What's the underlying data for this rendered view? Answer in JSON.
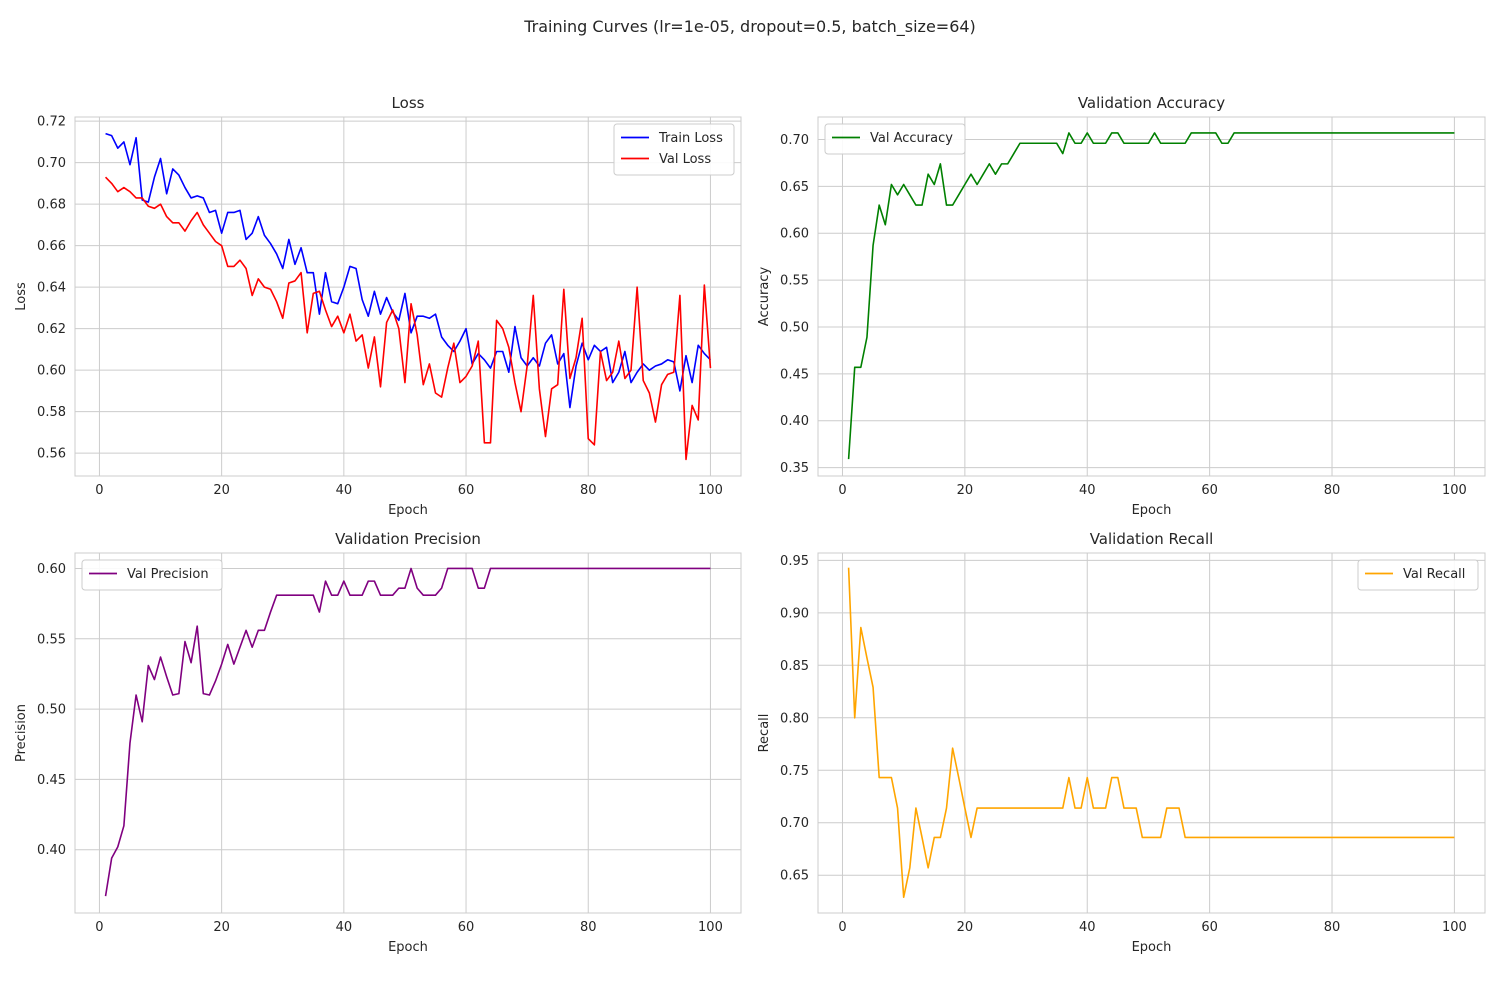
{
  "figure": {
    "title": "Training Curves (lr=1e-05, dropout=0.5, batch_size=64)"
  },
  "chart_data": [
    {
      "type": "line",
      "title": "Loss",
      "xlabel": "Epoch",
      "ylabel": "Loss",
      "xlim": [
        -4,
        105
      ],
      "ylim": [
        0.549,
        0.722
      ],
      "xticks": [
        0,
        20,
        40,
        60,
        80,
        100
      ],
      "yticks": [
        0.56,
        0.58,
        0.6,
        0.62,
        0.64,
        0.66,
        0.68,
        0.7,
        0.72
      ],
      "ytick_format": 2,
      "grid": true,
      "legend": "top-right",
      "x": [
        1,
        2,
        3,
        4,
        5,
        6,
        7,
        8,
        9,
        10,
        11,
        12,
        13,
        14,
        15,
        16,
        17,
        18,
        19,
        20,
        21,
        22,
        23,
        24,
        25,
        26,
        27,
        28,
        29,
        30,
        31,
        32,
        33,
        34,
        35,
        36,
        37,
        38,
        39,
        40,
        41,
        42,
        43,
        44,
        45,
        46,
        47,
        48,
        49,
        50,
        51,
        52,
        53,
        54,
        55,
        56,
        57,
        58,
        59,
        60,
        61,
        62,
        63,
        64,
        65,
        66,
        67,
        68,
        69,
        70,
        71,
        72,
        73,
        74,
        75,
        76,
        77,
        78,
        79,
        80,
        81,
        82,
        83,
        84,
        85,
        86,
        87,
        88,
        89,
        90,
        91,
        92,
        93,
        94,
        95,
        96,
        97,
        98,
        99,
        100
      ],
      "series": [
        {
          "name": "Train Loss",
          "color": "#0000ff",
          "values": [
            0.714,
            0.713,
            0.707,
            0.71,
            0.699,
            0.712,
            0.682,
            0.681,
            0.693,
            0.702,
            0.685,
            0.697,
            0.694,
            0.688,
            0.683,
            0.684,
            0.683,
            0.676,
            0.677,
            0.666,
            0.676,
            0.676,
            0.677,
            0.663,
            0.666,
            0.674,
            0.665,
            0.661,
            0.656,
            0.649,
            0.663,
            0.651,
            0.659,
            0.647,
            0.647,
            0.627,
            0.647,
            0.633,
            0.632,
            0.64,
            0.65,
            0.649,
            0.634,
            0.626,
            0.638,
            0.627,
            0.635,
            0.628,
            0.624,
            0.637,
            0.618,
            0.626,
            0.626,
            0.625,
            0.627,
            0.616,
            0.612,
            0.609,
            0.614,
            0.62,
            0.603,
            0.608,
            0.605,
            0.601,
            0.609,
            0.609,
            0.599,
            0.621,
            0.606,
            0.602,
            0.606,
            0.602,
            0.613,
            0.617,
            0.603,
            0.608,
            0.582,
            0.602,
            0.613,
            0.605,
            0.612,
            0.609,
            0.611,
            0.594,
            0.599,
            0.609,
            0.594,
            0.599,
            0.603,
            0.6,
            0.602,
            0.603,
            0.605,
            0.604,
            0.59,
            0.607,
            0.594,
            0.612,
            0.608,
            0.605
          ]
        },
        {
          "name": "Val Loss",
          "color": "#ff0000",
          "values": [
            0.693,
            0.69,
            0.686,
            0.688,
            0.686,
            0.683,
            0.683,
            0.679,
            0.678,
            0.68,
            0.674,
            0.671,
            0.671,
            0.667,
            0.672,
            0.676,
            0.67,
            0.666,
            0.662,
            0.66,
            0.65,
            0.65,
            0.653,
            0.649,
            0.636,
            0.644,
            0.64,
            0.639,
            0.633,
            0.625,
            0.642,
            0.643,
            0.647,
            0.618,
            0.637,
            0.638,
            0.629,
            0.621,
            0.626,
            0.618,
            0.627,
            0.614,
            0.617,
            0.601,
            0.616,
            0.592,
            0.623,
            0.629,
            0.62,
            0.594,
            0.632,
            0.617,
            0.593,
            0.603,
            0.589,
            0.587,
            0.601,
            0.613,
            0.594,
            0.597,
            0.602,
            0.614,
            0.565,
            0.565,
            0.624,
            0.62,
            0.611,
            0.594,
            0.58,
            0.602,
            0.636,
            0.591,
            0.568,
            0.591,
            0.593,
            0.639,
            0.596,
            0.606,
            0.625,
            0.567,
            0.564,
            0.609,
            0.595,
            0.599,
            0.614,
            0.596,
            0.6,
            0.64,
            0.595,
            0.589,
            0.575,
            0.593,
            0.598,
            0.599,
            0.636,
            0.557,
            0.583,
            0.576,
            0.641,
            0.601
          ]
        }
      ]
    },
    {
      "type": "line",
      "title": "Validation Accuracy",
      "xlabel": "Epoch",
      "ylabel": "Accuracy",
      "xlim": [
        -4,
        105
      ],
      "ylim": [
        0.341,
        0.724
      ],
      "xticks": [
        0,
        20,
        40,
        60,
        80,
        100
      ],
      "yticks": [
        0.35,
        0.4,
        0.45,
        0.5,
        0.55,
        0.6,
        0.65,
        0.7
      ],
      "ytick_format": 2,
      "grid": true,
      "legend": "top-left",
      "x": [
        1,
        2,
        3,
        4,
        5,
        6,
        7,
        8,
        9,
        10,
        11,
        12,
        13,
        14,
        15,
        16,
        17,
        18,
        19,
        20,
        21,
        22,
        23,
        24,
        25,
        26,
        27,
        28,
        29,
        30,
        31,
        32,
        33,
        34,
        35,
        36,
        37,
        38,
        39,
        40,
        41,
        42,
        43,
        44,
        45,
        46,
        47,
        48,
        49,
        50,
        51,
        52,
        53,
        54,
        55,
        56,
        57,
        58,
        59,
        60,
        61,
        62,
        63,
        64,
        65,
        66,
        67,
        68,
        69,
        70,
        71,
        72,
        73,
        74,
        75,
        76,
        77,
        78,
        79,
        80,
        81,
        82,
        83,
        84,
        85,
        86,
        87,
        88,
        89,
        90,
        91,
        92,
        93,
        94,
        95,
        96,
        97,
        98,
        99,
        100
      ],
      "series": [
        {
          "name": "Val Accuracy",
          "color": "#008000",
          "values": [
            0.359,
            0.457,
            0.457,
            0.489,
            0.587,
            0.63,
            0.609,
            0.652,
            0.641,
            0.652,
            0.641,
            0.63,
            0.63,
            0.663,
            0.652,
            0.674,
            0.63,
            0.63,
            0.641,
            0.652,
            0.663,
            0.652,
            0.663,
            0.674,
            0.663,
            0.674,
            0.674,
            0.685,
            0.696,
            0.696,
            0.696,
            0.696,
            0.696,
            0.696,
            0.696,
            0.685,
            0.707,
            0.696,
            0.696,
            0.707,
            0.696,
            0.696,
            0.696,
            0.707,
            0.707,
            0.696,
            0.696,
            0.696,
            0.696,
            0.696,
            0.707,
            0.696,
            0.696,
            0.696,
            0.696,
            0.696,
            0.707,
            0.707,
            0.707,
            0.707,
            0.707,
            0.696,
            0.696,
            0.707,
            0.707,
            0.707,
            0.707,
            0.707,
            0.707,
            0.707,
            0.707,
            0.707,
            0.707,
            0.707,
            0.707,
            0.707,
            0.707,
            0.707,
            0.707,
            0.707,
            0.707,
            0.707,
            0.707,
            0.707,
            0.707,
            0.707,
            0.707,
            0.707,
            0.707,
            0.707,
            0.707,
            0.707,
            0.707,
            0.707,
            0.707,
            0.707,
            0.707,
            0.707,
            0.707,
            0.707
          ]
        }
      ]
    },
    {
      "type": "line",
      "title": "Validation Precision",
      "xlabel": "Epoch",
      "ylabel": "Precision",
      "xlim": [
        -4,
        105
      ],
      "ylim": [
        0.355,
        0.611
      ],
      "xticks": [
        0,
        20,
        40,
        60,
        80,
        100
      ],
      "yticks": [
        0.4,
        0.45,
        0.5,
        0.55,
        0.6
      ],
      "ytick_format": 2,
      "grid": true,
      "legend": "top-left",
      "x": [
        1,
        2,
        3,
        4,
        5,
        6,
        7,
        8,
        9,
        10,
        11,
        12,
        13,
        14,
        15,
        16,
        17,
        18,
        19,
        20,
        21,
        22,
        23,
        24,
        25,
        26,
        27,
        28,
        29,
        30,
        31,
        32,
        33,
        34,
        35,
        36,
        37,
        38,
        39,
        40,
        41,
        42,
        43,
        44,
        45,
        46,
        47,
        48,
        49,
        50,
        51,
        52,
        53,
        54,
        55,
        56,
        57,
        58,
        59,
        60,
        61,
        62,
        63,
        64,
        65,
        66,
        67,
        68,
        69,
        70,
        71,
        72,
        73,
        74,
        75,
        76,
        77,
        78,
        79,
        80,
        81,
        82,
        83,
        84,
        85,
        86,
        87,
        88,
        89,
        90,
        91,
        92,
        93,
        94,
        95,
        96,
        97,
        98,
        99,
        100
      ],
      "series": [
        {
          "name": "Val Precision",
          "color": "#800080",
          "values": [
            0.367,
            0.394,
            0.402,
            0.417,
            0.476,
            0.51,
            0.491,
            0.531,
            0.521,
            0.537,
            0.523,
            0.51,
            0.511,
            0.548,
            0.533,
            0.559,
            0.511,
            0.51,
            0.52,
            0.532,
            0.546,
            0.532,
            0.544,
            0.556,
            0.544,
            0.556,
            0.556,
            0.569,
            0.581,
            0.581,
            0.581,
            0.581,
            0.581,
            0.581,
            0.581,
            0.569,
            0.591,
            0.581,
            0.581,
            0.591,
            0.581,
            0.581,
            0.581,
            0.591,
            0.591,
            0.581,
            0.581,
            0.581,
            0.586,
            0.586,
            0.6,
            0.586,
            0.581,
            0.581,
            0.581,
            0.586,
            0.6,
            0.6,
            0.6,
            0.6,
            0.6,
            0.586,
            0.586,
            0.6,
            0.6,
            0.6,
            0.6,
            0.6,
            0.6,
            0.6,
            0.6,
            0.6,
            0.6,
            0.6,
            0.6,
            0.6,
            0.6,
            0.6,
            0.6,
            0.6,
            0.6,
            0.6,
            0.6,
            0.6,
            0.6,
            0.6,
            0.6,
            0.6,
            0.6,
            0.6,
            0.6,
            0.6,
            0.6,
            0.6,
            0.6,
            0.6,
            0.6,
            0.6,
            0.6,
            0.6
          ]
        }
      ]
    },
    {
      "type": "line",
      "title": "Validation Recall",
      "xlabel": "Epoch",
      "ylabel": "Recall",
      "xlim": [
        -4,
        105
      ],
      "ylim": [
        0.614,
        0.957
      ],
      "xticks": [
        0,
        20,
        40,
        60,
        80,
        100
      ],
      "yticks": [
        0.65,
        0.7,
        0.75,
        0.8,
        0.85,
        0.9,
        0.95
      ],
      "ytick_format": 2,
      "grid": true,
      "legend": "top-right",
      "x": [
        1,
        2,
        3,
        4,
        5,
        6,
        7,
        8,
        9,
        10,
        11,
        12,
        13,
        14,
        15,
        16,
        17,
        18,
        19,
        20,
        21,
        22,
        23,
        24,
        25,
        26,
        27,
        28,
        29,
        30,
        31,
        32,
        33,
        34,
        35,
        36,
        37,
        38,
        39,
        40,
        41,
        42,
        43,
        44,
        45,
        46,
        47,
        48,
        49,
        50,
        51,
        52,
        53,
        54,
        55,
        56,
        57,
        58,
        59,
        60,
        61,
        62,
        63,
        64,
        65,
        66,
        67,
        68,
        69,
        70,
        71,
        72,
        73,
        74,
        75,
        76,
        77,
        78,
        79,
        80,
        81,
        82,
        83,
        84,
        85,
        86,
        87,
        88,
        89,
        90,
        91,
        92,
        93,
        94,
        95,
        96,
        97,
        98,
        99,
        100
      ],
      "series": [
        {
          "name": "Val Recall",
          "color": "#ffa500",
          "values": [
            0.943,
            0.8,
            0.886,
            0.857,
            0.829,
            0.743,
            0.743,
            0.743,
            0.714,
            0.629,
            0.657,
            0.714,
            0.686,
            0.657,
            0.686,
            0.686,
            0.714,
            0.771,
            0.743,
            0.714,
            0.686,
            0.714,
            0.714,
            0.714,
            0.714,
            0.714,
            0.714,
            0.714,
            0.714,
            0.714,
            0.714,
            0.714,
            0.714,
            0.714,
            0.714,
            0.714,
            0.743,
            0.714,
            0.714,
            0.743,
            0.714,
            0.714,
            0.714,
            0.743,
            0.743,
            0.714,
            0.714,
            0.714,
            0.686,
            0.686,
            0.686,
            0.686,
            0.714,
            0.714,
            0.714,
            0.686,
            0.686,
            0.686,
            0.686,
            0.686,
            0.686,
            0.686,
            0.686,
            0.686,
            0.686,
            0.686,
            0.686,
            0.686,
            0.686,
            0.686,
            0.686,
            0.686,
            0.686,
            0.686,
            0.686,
            0.686,
            0.686,
            0.686,
            0.686,
            0.686,
            0.686,
            0.686,
            0.686,
            0.686,
            0.686,
            0.686,
            0.686,
            0.686,
            0.686,
            0.686,
            0.686,
            0.686,
            0.686,
            0.686,
            0.686,
            0.686,
            0.686,
            0.686,
            0.686,
            0.686
          ]
        }
      ]
    }
  ]
}
